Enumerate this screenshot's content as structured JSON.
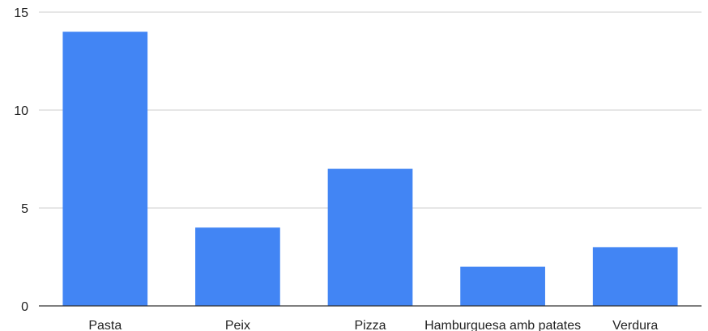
{
  "chart_data": {
    "type": "bar",
    "categories": [
      "Pasta",
      "Peix",
      "Pizza",
      "Hamburguesa amb patates",
      "Verdura"
    ],
    "values": [
      14,
      4,
      7,
      2,
      3
    ],
    "title": "",
    "xlabel": "",
    "ylabel": "",
    "ylim": [
      0,
      15
    ],
    "yticks": [
      0,
      5,
      10,
      15
    ],
    "grid": true,
    "bar_color": "#4285f4",
    "gridline_color": "#cccccc",
    "axis_color": "#333333"
  }
}
